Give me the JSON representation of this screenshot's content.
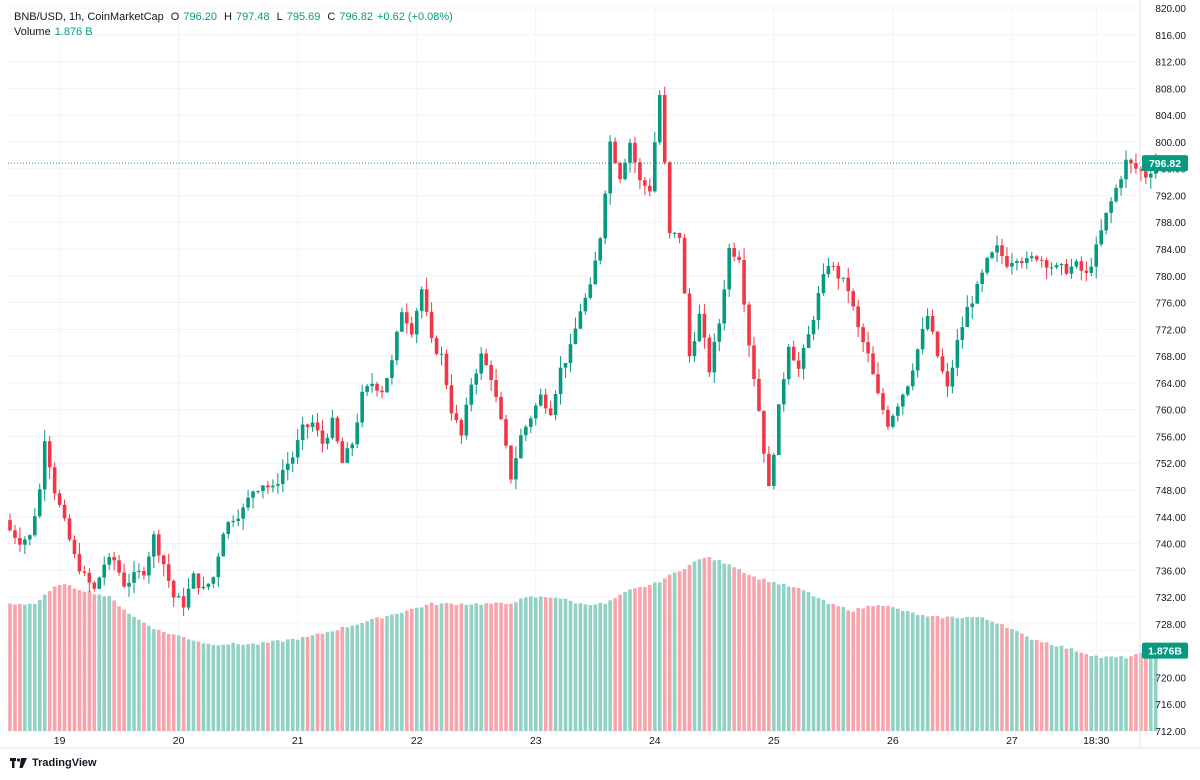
{
  "header": {
    "symbol": "BNB/USD, 1h, CoinMarketCap",
    "o_label": "O",
    "o_value": "796.20",
    "h_label": "H",
    "h_value": "797.48",
    "l_label": "L",
    "l_value": "795.69",
    "c_label": "C",
    "c_value": "796.82",
    "change": "+0.62 (+0.08%)",
    "volume_label": "Volume",
    "volume_value": "1.876 B"
  },
  "brand": {
    "name": "TradingView"
  },
  "colors": {
    "up": "#089981",
    "down": "#f23645",
    "vol_up": "#92d2c5",
    "vol_down": "#f7a4aa",
    "grid": "#f0f3fa",
    "text": "#131722"
  },
  "chart_data": {
    "type": "candlestick",
    "price_axis": {
      "min": 712,
      "max": 820,
      "ticks": [
        "820.00",
        "816.00",
        "812.00",
        "808.00",
        "804.00",
        "800.00",
        "796.00",
        "792.00",
        "788.00",
        "784.00",
        "780.00",
        "776.00",
        "772.00",
        "768.00",
        "764.00",
        "760.00",
        "756.00",
        "752.00",
        "748.00",
        "744.00",
        "740.00",
        "736.00",
        "732.00",
        "728.00",
        "724.00",
        "720.00",
        "716.00",
        "712.00"
      ]
    },
    "time_axis": {
      "ticks": [
        {
          "label": "19",
          "index": 10
        },
        {
          "label": "20",
          "index": 34
        },
        {
          "label": "21",
          "index": 58
        },
        {
          "label": "22",
          "index": 82
        },
        {
          "label": "23",
          "index": 106
        },
        {
          "label": "24",
          "index": 130
        },
        {
          "label": "25",
          "index": 154
        },
        {
          "label": "26",
          "index": 178
        },
        {
          "label": "27",
          "index": 202
        },
        {
          "label": "18:30",
          "index": 219
        }
      ]
    },
    "last_price": {
      "value": 796.82,
      "label": "796.82"
    },
    "last_volume": {
      "label": "1.876B"
    },
    "volume_panel": {
      "bottom_price": 712,
      "top_volume_price": 738.6
    },
    "close_anchors": [
      [
        0,
        742
      ],
      [
        2,
        740.5
      ],
      [
        4,
        741
      ],
      [
        6,
        748
      ],
      [
        7,
        756
      ],
      [
        9,
        748
      ],
      [
        11,
        743
      ],
      [
        13,
        738
      ],
      [
        15,
        735
      ],
      [
        17,
        733
      ],
      [
        19,
        737
      ],
      [
        21,
        737.5
      ],
      [
        23,
        734
      ],
      [
        25,
        735
      ],
      [
        27,
        736
      ],
      [
        29,
        741
      ],
      [
        31,
        737
      ],
      [
        33,
        732
      ],
      [
        35,
        731
      ],
      [
        37,
        735
      ],
      [
        39,
        733
      ],
      [
        41,
        735
      ],
      [
        43,
        742
      ],
      [
        45,
        744
      ],
      [
        47,
        745
      ],
      [
        49,
        748
      ],
      [
        51,
        749
      ],
      [
        53,
        748
      ],
      [
        55,
        751
      ],
      [
        57,
        753
      ],
      [
        59,
        757
      ],
      [
        61,
        758
      ],
      [
        63,
        755
      ],
      [
        65,
        758
      ],
      [
        67,
        752
      ],
      [
        69,
        755
      ],
      [
        71,
        762
      ],
      [
        73,
        764
      ],
      [
        75,
        763
      ],
      [
        77,
        767
      ],
      [
        79,
        775
      ],
      [
        81,
        772
      ],
      [
        83,
        778
      ],
      [
        85,
        770
      ],
      [
        87,
        768
      ],
      [
        89,
        760
      ],
      [
        91,
        756
      ],
      [
        93,
        764
      ],
      [
        95,
        768
      ],
      [
        97,
        765
      ],
      [
        99,
        758
      ],
      [
        101,
        750
      ],
      [
        103,
        756
      ],
      [
        105,
        759
      ],
      [
        107,
        762
      ],
      [
        109,
        760
      ],
      [
        111,
        766
      ],
      [
        113,
        769
      ],
      [
        115,
        775
      ],
      [
        117,
        778
      ],
      [
        119,
        786
      ],
      [
        121,
        800
      ],
      [
        123,
        795
      ],
      [
        125,
        800
      ],
      [
        127,
        794
      ],
      [
        129,
        793
      ],
      [
        131,
        807
      ],
      [
        133,
        786
      ],
      [
        135,
        786
      ],
      [
        137,
        768
      ],
      [
        139,
        774
      ],
      [
        141,
        766
      ],
      [
        143,
        773
      ],
      [
        145,
        784
      ],
      [
        147,
        783
      ],
      [
        149,
        770
      ],
      [
        151,
        760
      ],
      [
        153,
        748
      ],
      [
        155,
        760
      ],
      [
        157,
        770
      ],
      [
        159,
        766
      ],
      [
        161,
        771
      ],
      [
        163,
        777
      ],
      [
        165,
        782
      ],
      [
        167,
        780
      ],
      [
        169,
        778
      ],
      [
        171,
        772
      ],
      [
        173,
        768
      ],
      [
        175,
        762
      ],
      [
        177,
        758
      ],
      [
        179,
        761
      ],
      [
        181,
        764
      ],
      [
        183,
        769
      ],
      [
        185,
        774
      ],
      [
        187,
        768
      ],
      [
        189,
        763
      ],
      [
        191,
        770
      ],
      [
        193,
        775
      ],
      [
        195,
        778
      ],
      [
        197,
        782
      ],
      [
        199,
        784
      ],
      [
        201,
        782
      ],
      [
        203,
        783
      ],
      [
        205,
        782
      ],
      [
        207,
        783
      ],
      [
        209,
        782
      ],
      [
        211,
        781
      ],
      [
        213,
        781
      ],
      [
        215,
        781.5
      ],
      [
        217,
        780
      ],
      [
        219,
        784
      ],
      [
        221,
        789
      ],
      [
        223,
        793
      ],
      [
        225,
        797
      ],
      [
        227,
        796
      ],
      [
        229,
        795
      ],
      [
        231,
        796.8
      ]
    ],
    "volume_anchors": [
      [
        0,
        731
      ],
      [
        5,
        731
      ],
      [
        10,
        734
      ],
      [
        15,
        733
      ],
      [
        20,
        732
      ],
      [
        25,
        729
      ],
      [
        30,
        727
      ],
      [
        35,
        726
      ],
      [
        40,
        725
      ],
      [
        45,
        725
      ],
      [
        50,
        725
      ],
      [
        55,
        725.5
      ],
      [
        60,
        726
      ],
      [
        65,
        727
      ],
      [
        70,
        728
      ],
      [
        75,
        729
      ],
      [
        80,
        730
      ],
      [
        85,
        731
      ],
      [
        90,
        731
      ],
      [
        95,
        731
      ],
      [
        100,
        731
      ],
      [
        105,
        732
      ],
      [
        110,
        732
      ],
      [
        115,
        731
      ],
      [
        120,
        731
      ],
      [
        125,
        733
      ],
      [
        130,
        734
      ],
      [
        135,
        736
      ],
      [
        140,
        738
      ],
      [
        145,
        737
      ],
      [
        150,
        735
      ],
      [
        155,
        734
      ],
      [
        160,
        733
      ],
      [
        165,
        731
      ],
      [
        170,
        730
      ],
      [
        175,
        731
      ],
      [
        180,
        730
      ],
      [
        185,
        729
      ],
      [
        190,
        729
      ],
      [
        195,
        729
      ],
      [
        200,
        728
      ],
      [
        205,
        726
      ],
      [
        210,
        725
      ],
      [
        215,
        724
      ],
      [
        220,
        723
      ],
      [
        225,
        723
      ],
      [
        231,
        724
      ]
    ]
  }
}
